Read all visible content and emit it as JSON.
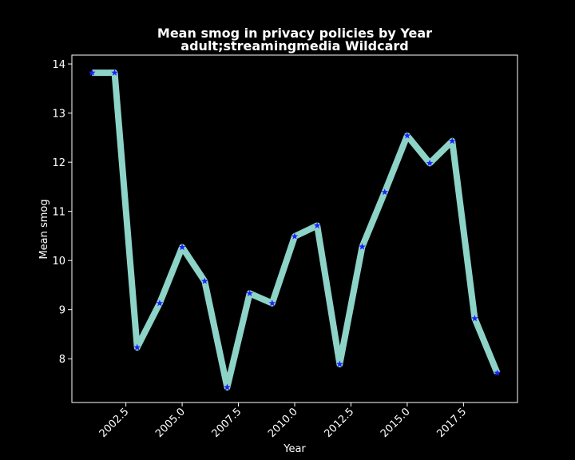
{
  "chart_data": {
    "type": "line",
    "title": "Mean smog in privacy policies by Year",
    "subtitle": "adult;streamingmedia Wildcard",
    "xlabel": "Year",
    "ylabel": "Mean smog",
    "xlim": [
      2000.1,
      2019.9
    ],
    "ylim": [
      7.11,
      14.18
    ],
    "x_ticks": [
      2002.5,
      2005.0,
      2007.5,
      2010.0,
      2012.5,
      2015.0,
      2017.5
    ],
    "x_tick_labels": [
      "2002.5",
      "2005.0",
      "2007.5",
      "2010.0",
      "2012.5",
      "2015.0",
      "2017.5"
    ],
    "y_ticks": [
      8,
      9,
      10,
      11,
      12,
      13,
      14
    ],
    "y_tick_labels": [
      "8",
      "9",
      "10",
      "11",
      "12",
      "13",
      "14"
    ],
    "series": [
      {
        "name": "Mean smog",
        "line_color": "#8dd3c7",
        "marker_color": "#1f1fff",
        "marker": "star",
        "x": [
          2001,
          2002,
          2003,
          2004,
          2005,
          2006,
          2007,
          2008,
          2009,
          2010,
          2011,
          2012,
          2013,
          2014,
          2015,
          2016,
          2017,
          2018,
          2019
        ],
        "y": [
          13.82,
          13.82,
          8.23,
          9.13,
          10.27,
          9.58,
          7.42,
          9.33,
          9.13,
          10.49,
          10.71,
          7.89,
          10.28,
          11.39,
          12.54,
          11.98,
          12.43,
          8.82,
          7.71
        ]
      }
    ]
  }
}
